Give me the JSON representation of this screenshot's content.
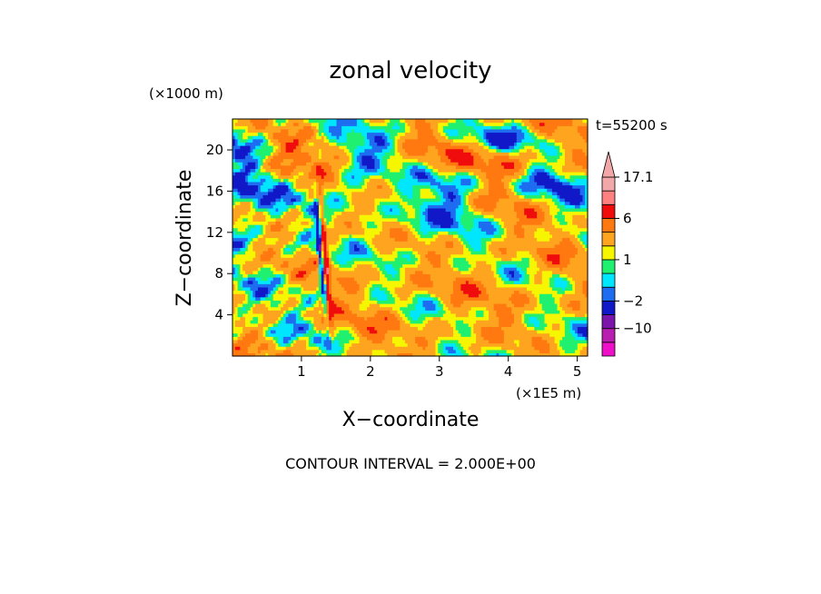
{
  "chart_data": {
    "type": "heatmap",
    "title": "zonal velocity",
    "xlabel": "X−coordinate",
    "ylabel": "Z−coordinate",
    "x_unit": "(×1E5 m)",
    "y_unit": "(×1000 m)",
    "time_label": "t=55200 s",
    "contour_interval_label": "CONTOUR INTERVAL = 2.000E+00",
    "xlim": [
      0,
      5.15
    ],
    "ylim": [
      0,
      23
    ],
    "x_ticks": [
      1,
      2,
      3,
      4,
      5
    ],
    "x_tick_labels": [
      "1",
      "2",
      "3",
      "4",
      "5"
    ],
    "y_ticks": [
      4,
      8,
      12,
      16,
      20
    ],
    "y_tick_labels": [
      "4",
      "8",
      "12",
      "16",
      "20"
    ],
    "colorbar": {
      "labels": [
        {
          "value": 17.1,
          "text": "17.1"
        },
        {
          "value": 6,
          "text": "6"
        },
        {
          "value": 1,
          "text": "1"
        },
        {
          "value": -2,
          "text": "−2"
        },
        {
          "value": -10,
          "text": "−10"
        }
      ],
      "levels": [
        {
          "min": -18,
          "max": -14,
          "color": "#ee10c8"
        },
        {
          "min": -14,
          "max": -10,
          "color": "#b81eb0"
        },
        {
          "min": -10,
          "max": -6,
          "color": "#7a14aa"
        },
        {
          "min": -6,
          "max": -2,
          "color": "#1018c8"
        },
        {
          "min": -2,
          "max": -1,
          "color": "#1e6cf0"
        },
        {
          "min": -1,
          "max": 0,
          "color": "#00e6ff"
        },
        {
          "min": 0,
          "max": 1,
          "color": "#20f070"
        },
        {
          "min": 1,
          "max": 2,
          "color": "#f6f600"
        },
        {
          "min": 2,
          "max": 4,
          "color": "#ffa41e"
        },
        {
          "min": 4,
          "max": 6,
          "color": "#ff7810"
        },
        {
          "min": 6,
          "max": 10,
          "color": "#f00c0c"
        },
        {
          "min": 10,
          "max": 14,
          "color": "#ff8080"
        },
        {
          "min": 14,
          "max": 17.1,
          "color": "#f2a8a8"
        }
      ],
      "overflow_color": "#f2a8a8"
    }
  }
}
